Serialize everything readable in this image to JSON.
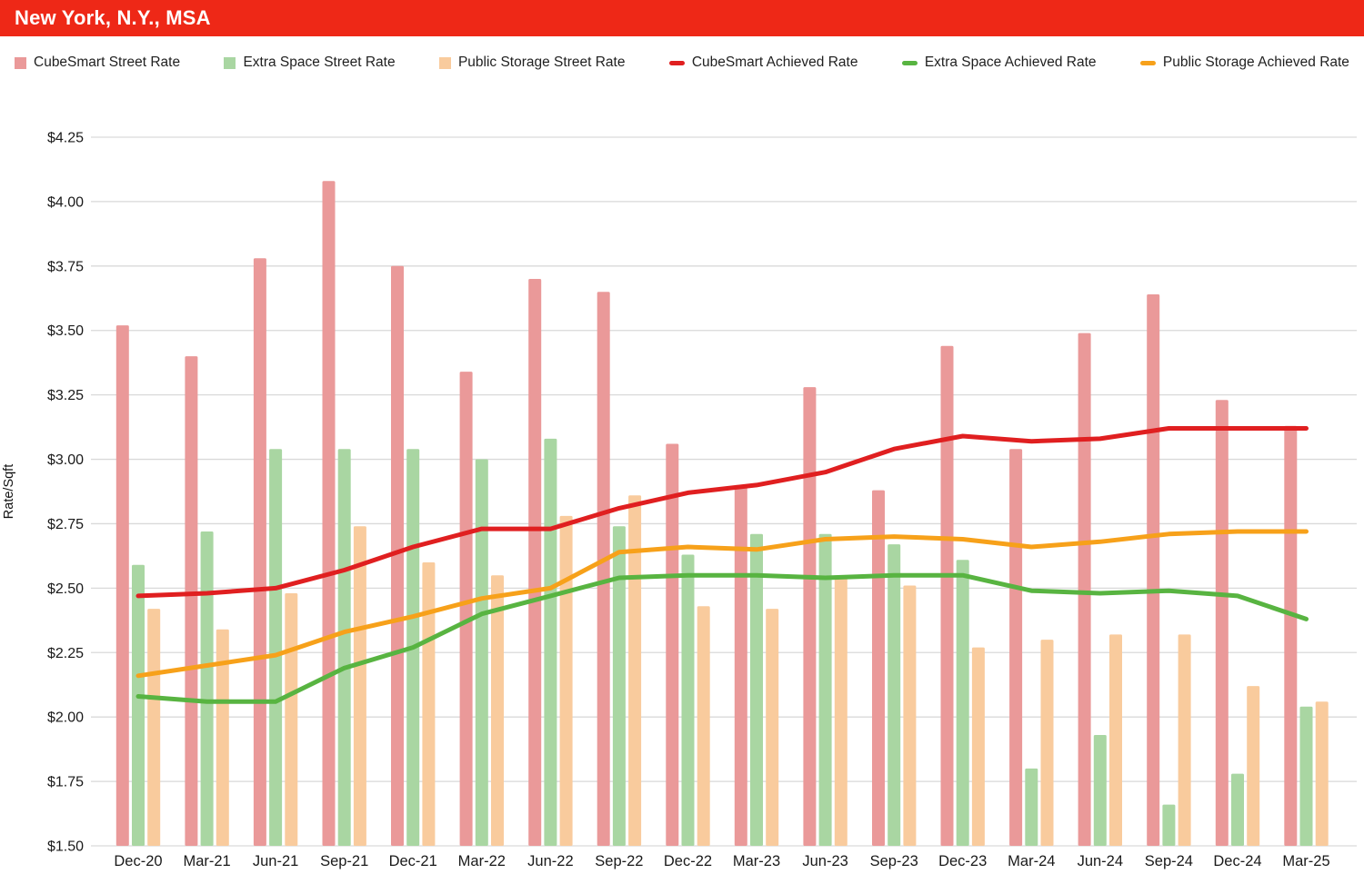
{
  "header": {
    "title": "New York, N.Y., MSA"
  },
  "colors": {
    "banner": "#ee2817",
    "grid": "#d9d9d9",
    "axis_text": "#1a1a1a",
    "cubesmart_street": "#ea9999",
    "extra_space_street": "#a9d6a2",
    "public_storage_street": "#f9cb9d",
    "cubesmart_achieved": "#e01f20",
    "extra_space_achieved": "#58b441",
    "public_storage_achieved": "#f7a11a"
  },
  "chart_data": {
    "type": "bar+line",
    "title": "New York, N.Y., MSA",
    "xlabel": "",
    "ylabel": "Rate/Sqft",
    "ylim": [
      1.5,
      4.25
    ],
    "grid": true,
    "legend_position": "top",
    "y_tick_values": [
      1.5,
      1.75,
      2.0,
      2.25,
      2.5,
      2.75,
      3.0,
      3.25,
      3.5,
      3.75,
      4.0,
      4.25
    ],
    "y_tick_labels": [
      "$1.50",
      "$1.75",
      "$2.00",
      "$2.25",
      "$2.50",
      "$2.75",
      "$3.00",
      "$3.25",
      "$3.50",
      "$3.75",
      "$4.00",
      "$4.25"
    ],
    "categories": [
      "Dec-20",
      "Mar-21",
      "Jun-21",
      "Sep-21",
      "Dec-21",
      "Mar-22",
      "Jun-22",
      "Sep-22",
      "Dec-22",
      "Mar-23",
      "Jun-23",
      "Sep-23",
      "Dec-23",
      "Mar-24",
      "Jun-24",
      "Sep-24",
      "Dec-24",
      "Mar-25"
    ],
    "series": [
      {
        "name": "CubeSmart Street Rate",
        "type": "bar",
        "color": "#ea9999",
        "values": [
          3.52,
          3.4,
          3.78,
          4.08,
          3.75,
          3.34,
          3.7,
          3.65,
          3.06,
          2.9,
          3.28,
          2.88,
          3.44,
          3.04,
          3.49,
          3.64,
          3.23,
          3.13
        ]
      },
      {
        "name": "Extra Space Street Rate",
        "type": "bar",
        "color": "#a9d6a2",
        "values": [
          2.59,
          2.72,
          3.04,
          3.04,
          3.04,
          3.0,
          3.08,
          2.74,
          2.63,
          2.71,
          2.71,
          2.67,
          2.61,
          1.8,
          1.93,
          1.66,
          1.78,
          2.04
        ]
      },
      {
        "name": "Public Storage Street Rate",
        "type": "bar",
        "color": "#f9cb9d",
        "values": [
          2.42,
          2.34,
          2.48,
          2.74,
          2.6,
          2.55,
          2.78,
          2.86,
          2.43,
          2.42,
          2.55,
          2.51,
          2.27,
          2.3,
          2.32,
          2.32,
          2.12,
          2.06
        ]
      },
      {
        "name": "CubeSmart Achieved Rate",
        "type": "line",
        "color": "#e01f20",
        "values": [
          2.47,
          2.48,
          2.5,
          2.57,
          2.66,
          2.73,
          2.73,
          2.81,
          2.87,
          2.9,
          2.95,
          3.04,
          3.09,
          3.07,
          3.08,
          3.12,
          3.12,
          3.12
        ]
      },
      {
        "name": "Extra Space Achieved Rate",
        "type": "line",
        "color": "#58b441",
        "values": [
          2.08,
          2.06,
          2.06,
          2.19,
          2.27,
          2.4,
          2.47,
          2.54,
          2.55,
          2.55,
          2.54,
          2.55,
          2.55,
          2.49,
          2.48,
          2.49,
          2.47,
          2.38
        ]
      },
      {
        "name": "Public Storage Achieved Rate",
        "type": "line",
        "color": "#f7a11a",
        "values": [
          2.16,
          2.2,
          2.24,
          2.33,
          2.39,
          2.46,
          2.5,
          2.64,
          2.66,
          2.65,
          2.69,
          2.7,
          2.69,
          2.66,
          2.68,
          2.71,
          2.72,
          2.72
        ]
      }
    ]
  }
}
